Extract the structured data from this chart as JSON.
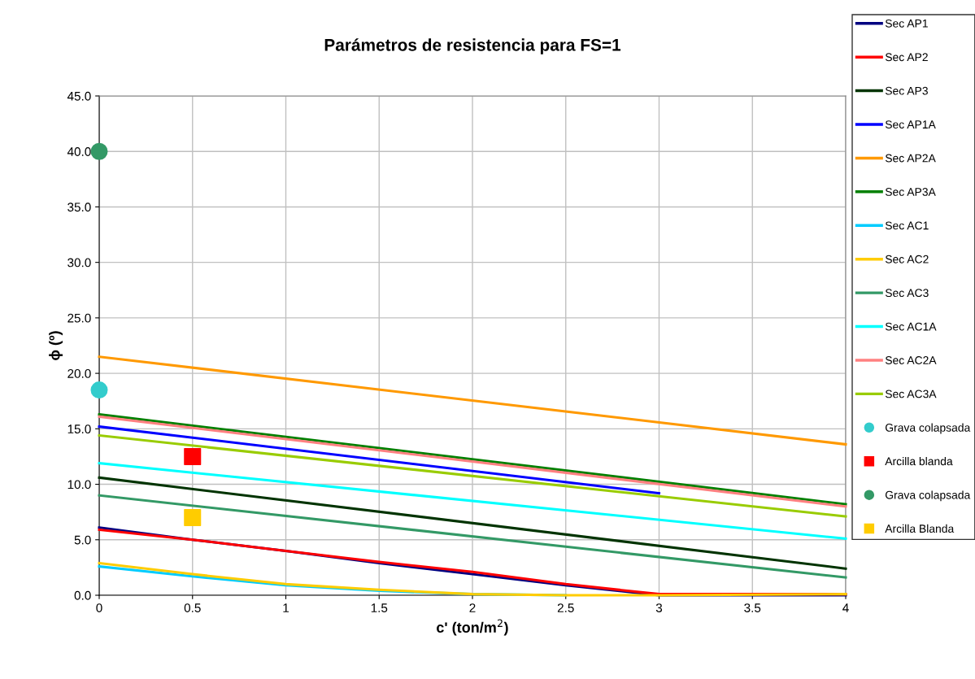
{
  "chart_data": {
    "type": "line",
    "title": "Parámetros de resistencia para FS=1",
    "xlabel": "c' (ton/m$^{2}$)",
    "ylabel": "ϕ (º)",
    "xlim": [
      0,
      4
    ],
    "xticks": [
      0,
      0.5,
      1,
      1.5,
      2,
      2.5,
      3,
      3.5,
      4
    ],
    "ylim": [
      0,
      45
    ],
    "yticks": [
      {
        "value": 0,
        "label": "0.0"
      },
      {
        "value": 5,
        "label": "5.0"
      },
      {
        "value": 10,
        "label": "10.0"
      },
      {
        "value": 15,
        "label": "15.0"
      },
      {
        "value": 20,
        "label": "20.0"
      },
      {
        "value": 25,
        "label": "25.0"
      },
      {
        "value": 30,
        "label": "30.0"
      },
      {
        "value": 35,
        "label": "35.0"
      },
      {
        "value": 40,
        "label": "40.0"
      },
      {
        "value": 45,
        "label": "45.0"
      }
    ],
    "grid": true,
    "legend": "right",
    "marker": "none",
    "line_style": "solid",
    "series": [
      {
        "name": "Sec AP1",
        "color": "#000080",
        "x": [
          0,
          0.5,
          1,
          1.5,
          2,
          2.5,
          3,
          4
        ],
        "values": [
          6.1,
          5.0,
          4.0,
          2.9,
          1.9,
          0.9,
          0,
          0
        ]
      },
      {
        "name": "Sec AP2",
        "color": "#ff0000",
        "x": [
          0,
          0.5,
          1,
          1.5,
          2,
          2.5,
          3,
          4
        ],
        "values": [
          5.9,
          5.0,
          4.0,
          3.0,
          2.1,
          1.0,
          0.1,
          0.1
        ]
      },
      {
        "name": "Sec AP3",
        "color": "#003300",
        "x": [
          0,
          4
        ],
        "values": [
          10.6,
          2.4
        ]
      },
      {
        "name": "Sec AP1A",
        "color": "#0000ff",
        "x": [
          0,
          3
        ],
        "values": [
          15.2,
          9.2
        ]
      },
      {
        "name": "Sec AP2A",
        "color": "#ff9900",
        "x": [
          0,
          4
        ],
        "values": [
          21.5,
          13.6
        ]
      },
      {
        "name": "Sec AP3A",
        "color": "#008000",
        "x": [
          0,
          4
        ],
        "values": [
          16.3,
          8.2
        ]
      },
      {
        "name": "Sec AC1",
        "color": "#00ccff",
        "x": [
          0,
          0.5,
          1,
          1.5,
          2,
          2.5
        ],
        "values": [
          2.6,
          1.7,
          0.9,
          0.4,
          0.1,
          0
        ]
      },
      {
        "name": "Sec AC2",
        "color": "#ffcc00",
        "x": [
          0,
          0.5,
          1,
          1.5,
          2,
          2.5,
          3,
          4
        ],
        "values": [
          2.9,
          1.9,
          1.0,
          0.5,
          0.1,
          0,
          0,
          0.1
        ]
      },
      {
        "name": "Sec AC3",
        "color": "#339966",
        "x": [
          0,
          4
        ],
        "values": [
          9.0,
          1.6
        ]
      },
      {
        "name": "Sec AC1A",
        "color": "#00ffff",
        "x": [
          0,
          4
        ],
        "values": [
          11.9,
          5.1
        ]
      },
      {
        "name": "Sec AC2A",
        "color": "#ff8080",
        "x": [
          0,
          4
        ],
        "values": [
          16.1,
          8.0
        ]
      },
      {
        "name": "Sec AC3A",
        "color": "#99cc00",
        "x": [
          0,
          4
        ],
        "values": [
          14.4,
          7.1
        ]
      },
      {
        "name": "Grava colapsada",
        "type": "scatter",
        "marker": "circle",
        "color": "#33cccc",
        "x": [
          0
        ],
        "values": [
          18.5
        ]
      },
      {
        "name": "Arcilla blanda",
        "type": "scatter",
        "marker": "square",
        "color": "#ff0000",
        "x": [
          0.5
        ],
        "values": [
          12.5
        ]
      },
      {
        "name": "Grava colapsada",
        "type": "scatter",
        "marker": "circle",
        "color": "#339966",
        "x": [
          0
        ],
        "values": [
          40.0
        ]
      },
      {
        "name": "Arcilla Blanda",
        "type": "scatter",
        "marker": "square",
        "color": "#ffcc00",
        "x": [
          0.5
        ],
        "values": [
          7.0
        ]
      }
    ]
  }
}
